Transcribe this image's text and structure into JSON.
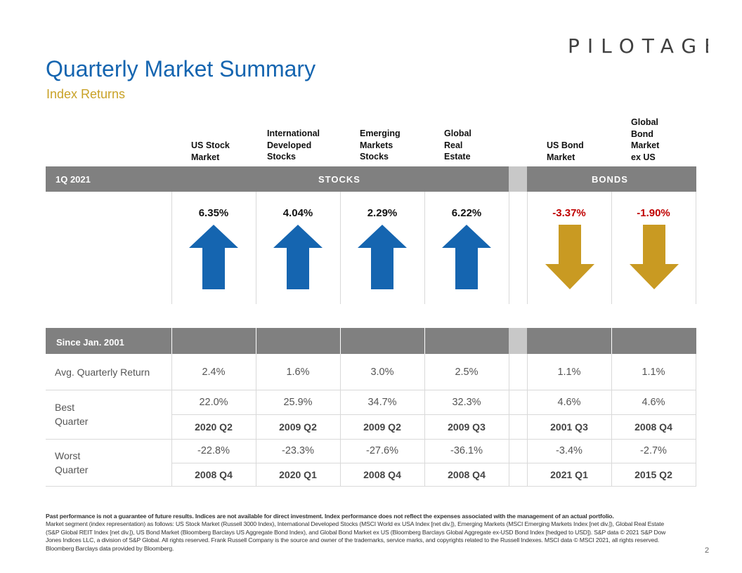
{
  "logo": {
    "text": "PILOTAGE",
    "accent_color": "#e0a826",
    "blue": "#1f73c7"
  },
  "title": "Quarterly Market Summary",
  "subtitle": "Index Returns",
  "columns": [
    {
      "header": "US Stock\nMarket",
      "return": "6.35%",
      "direction": "up",
      "avg": "2.4%",
      "best": "22.0%",
      "best_q": "2020 Q2",
      "worst": "-22.8%",
      "worst_q": "2008 Q4"
    },
    {
      "header": "International\nDeveloped\nStocks",
      "return": "4.04%",
      "direction": "up",
      "avg": "1.6%",
      "best": "25.9%",
      "best_q": "2009 Q2",
      "worst": "-23.3%",
      "worst_q": "2020 Q1"
    },
    {
      "header": "Emerging\nMarkets\nStocks",
      "return": "2.29%",
      "direction": "up",
      "avg": "3.0%",
      "best": "34.7%",
      "best_q": "2009 Q2",
      "worst": "-27.6%",
      "worst_q": "2008 Q4"
    },
    {
      "header": "Global\nReal\nEstate",
      "return": "6.22%",
      "direction": "up",
      "avg": "2.5%",
      "best": "32.3%",
      "best_q": "2009 Q3",
      "worst": "-36.1%",
      "worst_q": "2008 Q4"
    },
    {
      "header": "US Bond\nMarket",
      "return": "-3.37%",
      "direction": "down",
      "avg": "1.1%",
      "best": "4.6%",
      "best_q": "2001 Q3",
      "worst": "-3.4%",
      "worst_q": "2021 Q1"
    },
    {
      "header": "Global\nBond\nMarket\nex US",
      "return": "-1.90%",
      "direction": "down",
      "avg": "1.1%",
      "best": "4.6%",
      "best_q": "2008 Q4",
      "worst": "-2.7%",
      "worst_q": "2015 Q2"
    }
  ],
  "band": {
    "period": "1Q 2021",
    "stocks": "STOCKS",
    "bonds": "BONDS"
  },
  "since": {
    "label": "Since Jan. 2001"
  },
  "rows": {
    "avg": "Avg. Quarterly Return",
    "best": "Best\nQuarter",
    "worst": "Worst\nQuarter"
  },
  "colors": {
    "up": "#1565b0",
    "down": "#c99a22",
    "negative_text": "#c00000",
    "band": "#808080"
  },
  "footnote": {
    "bold": "Past performance is not a guarantee of future results. Indices are not available for direct investment. Index performance does not reflect the expenses associated with the management of an actual portfolio.",
    "text": "Market segment (index representation) as follows: US Stock Market (Russell 3000 Index), International Developed Stocks (MSCI World ex USA Index [net div.]), Emerging Markets (MSCI Emerging Markets Index [net div.]), Global Real Estate (S&P Global REIT Index [net div.]), US Bond Market (Bloomberg Barclays US Aggregate Bond Index), and Global Bond Market ex US (Bloomberg Barclays Global Aggregate ex-USD Bond Index [hedged to USD]). S&P data © 2021 S&P Dow Jones Indices LLC, a division of S&P Global. All rights reserved. Frank Russell Company is the source and owner of the trademarks, service marks, and copyrights related to the Russell Indexes. MSCI data © MSCI 2021, all rights reserved. Bloomberg Barclays data provided by Bloomberg."
  },
  "page_number": "2"
}
